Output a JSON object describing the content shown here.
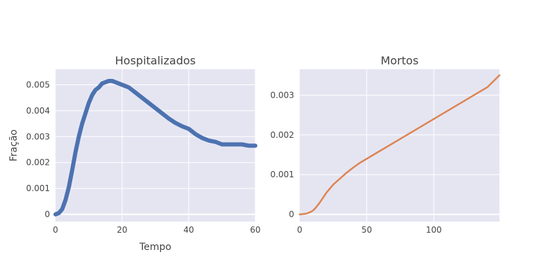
{
  "chart_data": [
    {
      "type": "line",
      "title": "Hospitalizados",
      "xlabel": "Tempo",
      "ylabel": "Fração",
      "xlim": [
        0,
        60
      ],
      "ylim": [
        -0.00028,
        0.0056
      ],
      "x_ticks": [
        0,
        20,
        40,
        60
      ],
      "y_ticks": [
        0,
        0.001,
        0.002,
        0.003,
        0.004,
        0.005
      ],
      "x_tick_labels": [
        "0",
        "20",
        "40",
        "60"
      ],
      "y_tick_labels": [
        "0",
        "0.001",
        "0.002",
        "0.003",
        "0.004",
        "0.005"
      ],
      "grid": true,
      "series": [
        {
          "color": "#4c72b0",
          "line_width": 6,
          "x": [
            0,
            1,
            2,
            3,
            4,
            5,
            6,
            7,
            8,
            9,
            10,
            11,
            12,
            13,
            14,
            15,
            16,
            17,
            18,
            19,
            20,
            22,
            24,
            26,
            28,
            30,
            32,
            34,
            36,
            38,
            40,
            42,
            44,
            46,
            48,
            50,
            52,
            54,
            56,
            58,
            60
          ],
          "y": [
            0,
            5e-05,
            0.0002,
            0.00055,
            0.00105,
            0.0017,
            0.0024,
            0.003,
            0.0035,
            0.0039,
            0.0043,
            0.0046,
            0.0048,
            0.0049,
            0.00505,
            0.0051,
            0.00515,
            0.00515,
            0.0051,
            0.00505,
            0.005,
            0.0049,
            0.0047,
            0.0045,
            0.0043,
            0.0041,
            0.0039,
            0.0037,
            0.00353,
            0.0034,
            0.0033,
            0.0031,
            0.00295,
            0.00285,
            0.0028,
            0.0027,
            0.0027,
            0.0027,
            0.0027,
            0.00265,
            0.00265
          ]
        }
      ]
    },
    {
      "type": "line",
      "title": "Mortos",
      "xlabel": "",
      "ylabel": "",
      "xlim": [
        0,
        149
      ],
      "ylim": [
        -0.00018,
        0.00365
      ],
      "x_ticks": [
        0,
        50,
        100
      ],
      "y_ticks": [
        0,
        0.001,
        0.002,
        0.003
      ],
      "x_tick_labels": [
        "0",
        "50",
        "100"
      ],
      "y_tick_labels": [
        "0",
        "0.001",
        "0.002",
        "0.003"
      ],
      "grid": true,
      "series": [
        {
          "color": "#dd8452",
          "line_width": 2.5,
          "x": [
            0,
            5,
            8,
            10,
            12,
            15,
            18,
            20,
            25,
            30,
            35,
            40,
            45,
            50,
            55,
            60,
            70,
            80,
            90,
            100,
            110,
            120,
            130,
            140,
            149
          ],
          "y": [
            0,
            2e-05,
            6e-05,
            0.0001,
            0.00017,
            0.0003,
            0.00045,
            0.00055,
            0.00075,
            0.0009,
            0.00105,
            0.00118,
            0.0013,
            0.0014,
            0.0015,
            0.0016,
            0.0018,
            0.002,
            0.0022,
            0.0024,
            0.0026,
            0.0028,
            0.003,
            0.0032,
            0.0035
          ]
        }
      ]
    }
  ]
}
